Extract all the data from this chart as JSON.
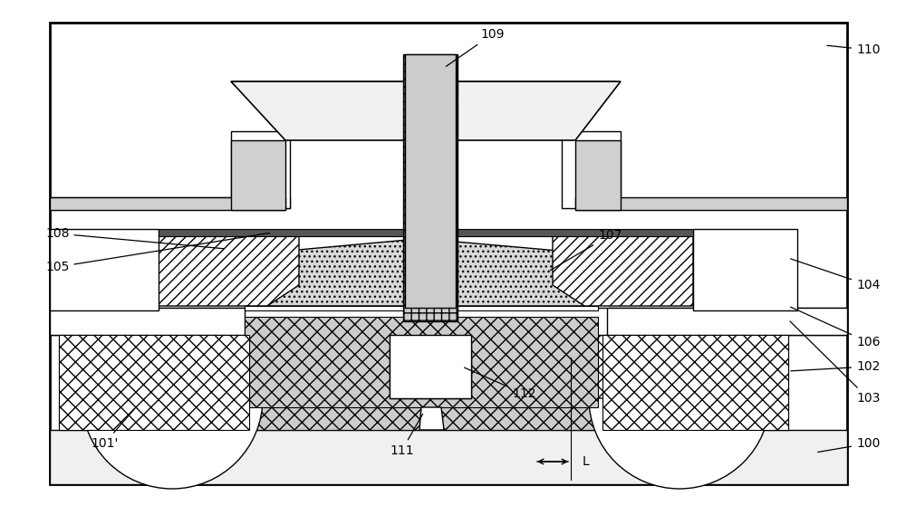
{
  "fig_width": 10.0,
  "fig_height": 5.69,
  "dpi": 100,
  "white": "#ffffff",
  "black": "#000000",
  "light_gray": "#e0e0e0",
  "mid_gray": "#b0b0b0",
  "dark_gray": "#808080",
  "lw_main": 1.5,
  "lw_thin": 0.8,
  "lw_med": 1.0
}
